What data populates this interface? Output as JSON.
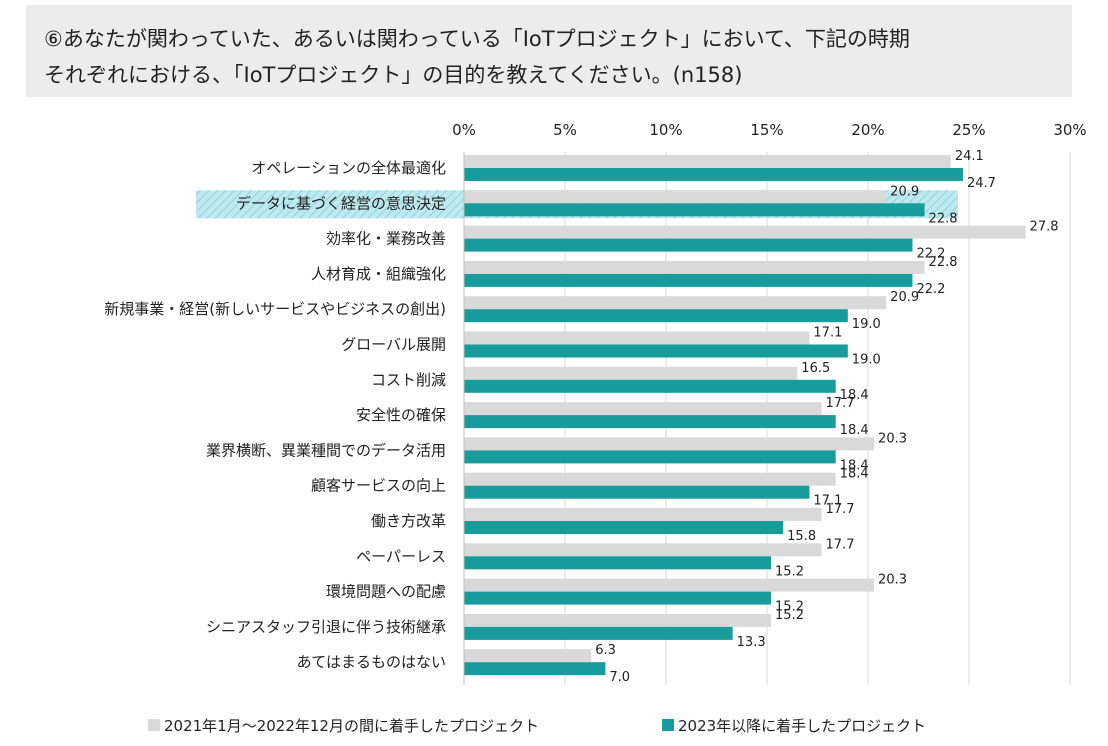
{
  "title": {
    "line1": "⑥あなたが関わっていた、あるいは関わっている「IoTプロジェクト」において、下記の時期",
    "line2": "それぞれにおける、「IoTプロジェクト」の目的を教えてください。(n158)"
  },
  "colors": {
    "series1": "#d9d9d9",
    "series2": "#179b9b",
    "highlight": "#bfe9ee",
    "grid": "#d9d9d9",
    "text": "#222222"
  },
  "chart_data": {
    "type": "bar",
    "orientation": "horizontal",
    "categories": [
      "オペレーションの全体最適化",
      "データに基づく経営の意思決定",
      "効率化・業務改善",
      "人材育成・組織強化",
      "新規事業・経営(新しいサービスやビジネスの創出)",
      "グローバル展開",
      "コスト削減",
      "安全性の確保",
      "業界横断、異業種間でのデータ活用",
      "顧客サービスの向上",
      "働き方改革",
      "ペーパーレス",
      "環境問題への配慮",
      "シニアスタッフ引退に伴う技術継承",
      "あてはまるものはない"
    ],
    "series": [
      {
        "name": "2021年1月～2022年12月の間に着手したプロジェクト",
        "values": [
          24.1,
          20.9,
          27.8,
          22.8,
          20.9,
          17.1,
          16.5,
          17.7,
          20.3,
          18.4,
          17.7,
          17.7,
          20.3,
          15.2,
          6.3
        ],
        "labels": [
          "24.1",
          "20.9",
          "27.8",
          "22.8",
          "20.9",
          "17.1",
          "16.5",
          "17.7",
          "20.3",
          "18.4",
          "17.7",
          "17.7",
          "20.3",
          "15.2",
          "6.3"
        ]
      },
      {
        "name": "2023年以降に着手したプロジェクト",
        "values": [
          24.7,
          22.8,
          22.2,
          22.2,
          19.0,
          19.0,
          18.4,
          18.4,
          18.4,
          17.1,
          15.8,
          15.2,
          15.2,
          13.3,
          7.0
        ],
        "labels": [
          "24.7",
          "22.8",
          "22.2",
          "22.2",
          "19.0",
          "19.0",
          "18.4",
          "18.4",
          "18.4",
          "17.1",
          "15.8",
          "15.2",
          "15.2",
          "13.3",
          "7.0"
        ]
      }
    ],
    "xlim": [
      0,
      30
    ],
    "ticks": [
      0,
      5,
      10,
      15,
      20,
      25,
      30
    ],
    "tick_labels": [
      "0%",
      "5%",
      "10%",
      "15%",
      "20%",
      "25%",
      "30%"
    ],
    "highlighted_category": "データに基づく経営の意思決定",
    "grid": true,
    "legend_position": "bottom"
  }
}
